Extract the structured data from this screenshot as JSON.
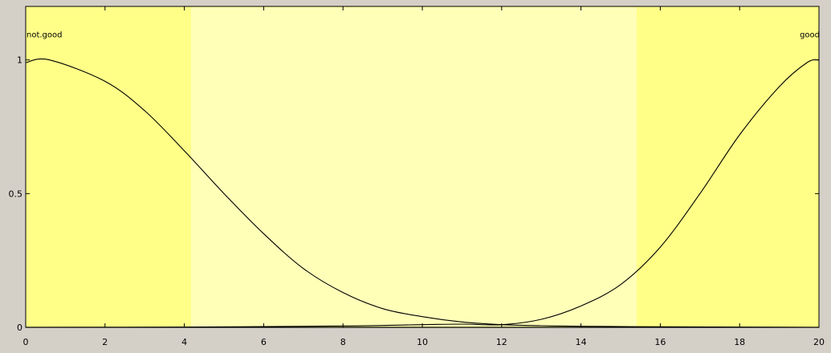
{
  "chart_data": {
    "type": "line",
    "title": "",
    "xlabel": "",
    "ylabel": "",
    "xlim": [
      0,
      20
    ],
    "ylim": [
      0,
      1.2
    ],
    "x_ticks": [
      "0",
      "2",
      "4",
      "6",
      "8",
      "10",
      "12",
      "14",
      "16",
      "18",
      "20"
    ],
    "y_ticks": [
      "0",
      "0.5",
      "1"
    ],
    "grid": false,
    "legend": "none",
    "series": [
      {
        "name": "not.good",
        "x": [
          0,
          0.6,
          2,
          3,
          4,
          5,
          6,
          7,
          8,
          9,
          10,
          11,
          12,
          13,
          14,
          16,
          18,
          20
        ],
        "y": [
          0.99,
          1.0,
          0.92,
          0.81,
          0.66,
          0.5,
          0.35,
          0.22,
          0.13,
          0.07,
          0.04,
          0.02,
          0.01,
          0.006,
          0.004,
          0.002,
          0.001,
          0.0
        ]
      },
      {
        "name": "good",
        "x": [
          0,
          4,
          8,
          10,
          11,
          12,
          13,
          14,
          15,
          16,
          17,
          18,
          19,
          19.7,
          20
        ],
        "y": [
          0.0,
          0.001,
          0.005,
          0.01,
          0.012,
          0.01,
          0.03,
          0.08,
          0.16,
          0.3,
          0.5,
          0.72,
          0.9,
          0.99,
          1.0
        ]
      }
    ]
  },
  "colors": {
    "plot_background": "#ffff88",
    "watermark_band": "#ffffb8",
    "frame": "#d4d0c8",
    "curve": "#000000"
  }
}
